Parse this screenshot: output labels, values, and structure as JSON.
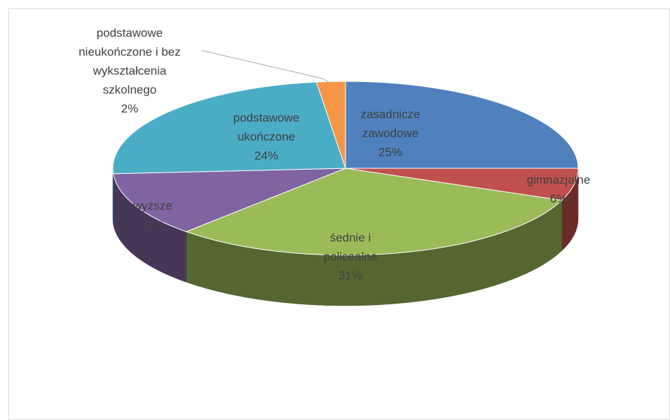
{
  "chart_data": {
    "type": "pie3d",
    "categories": [
      "zasadnicze zawodowe",
      "gimnazjalne",
      "śednie i policealne",
      "wyższe",
      "podstawowe ukończone",
      "podstawowe nieukończone i bez wykształcenia szkolnego"
    ],
    "values": [
      25,
      6,
      31,
      12,
      24,
      2
    ],
    "value_labels": [
      "25%",
      "6%",
      "31%",
      "12%",
      "24%",
      "2%"
    ],
    "colors": [
      "#4f81bd",
      "#c0504d",
      "#9bbb59",
      "#8064a2",
      "#4bacc6",
      "#f79646"
    ]
  }
}
